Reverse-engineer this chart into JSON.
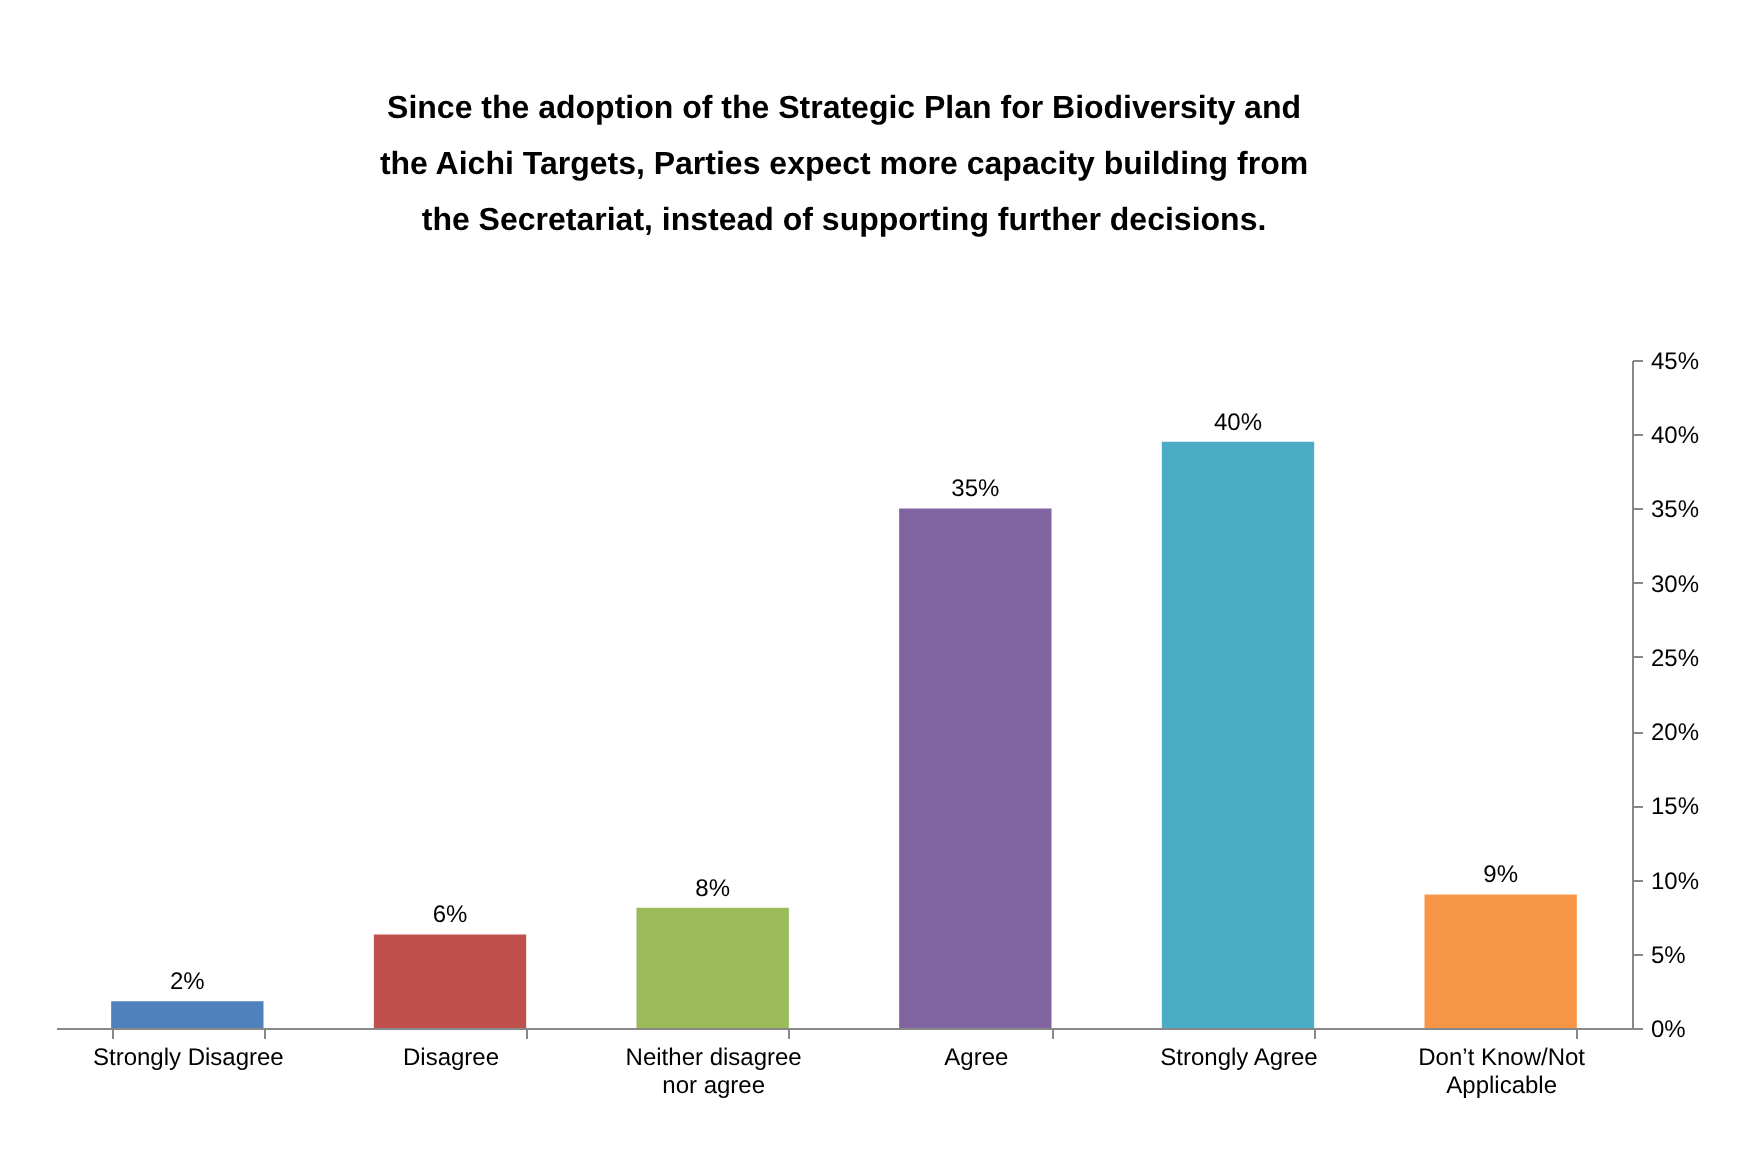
{
  "chart_data": {
    "type": "bar",
    "title": "Since the adoption of the Strategic Plan for Biodiversity and the Aichi Targets, Parties expect more capacity building from the Secretariat, instead of supporting further decisions.",
    "categories": [
      "Strongly Disagree",
      "Disagree",
      "Neither disagree nor agree",
      "Agree",
      "Strongly Agree",
      "Don’t Know/Not Applicable"
    ],
    "values": [
      1.8,
      6.3,
      8.1,
      35,
      39.5,
      9
    ],
    "colors": [
      "#4f81bd",
      "#c0504d",
      "#9bbb59",
      "#8064a2",
      "#4bacc6",
      "#f79646"
    ],
    "value_labels": [
      "2%",
      "6%",
      "8%",
      "35%",
      "40%",
      "9%"
    ],
    "ylim": [
      0,
      45
    ],
    "yticks": [
      {
        "value": 0,
        "label": "0%"
      },
      {
        "value": 5,
        "label": "5%"
      },
      {
        "value": 10,
        "label": "10%"
      },
      {
        "value": 15,
        "label": "15%"
      },
      {
        "value": 20,
        "label": "20%"
      },
      {
        "value": 25,
        "label": "25%"
      },
      {
        "value": 30,
        "label": "30%"
      },
      {
        "value": 35,
        "label": "35%"
      },
      {
        "value": 40,
        "label": "40%"
      },
      {
        "value": 45,
        "label": "45%"
      }
    ],
    "grid": false
  }
}
